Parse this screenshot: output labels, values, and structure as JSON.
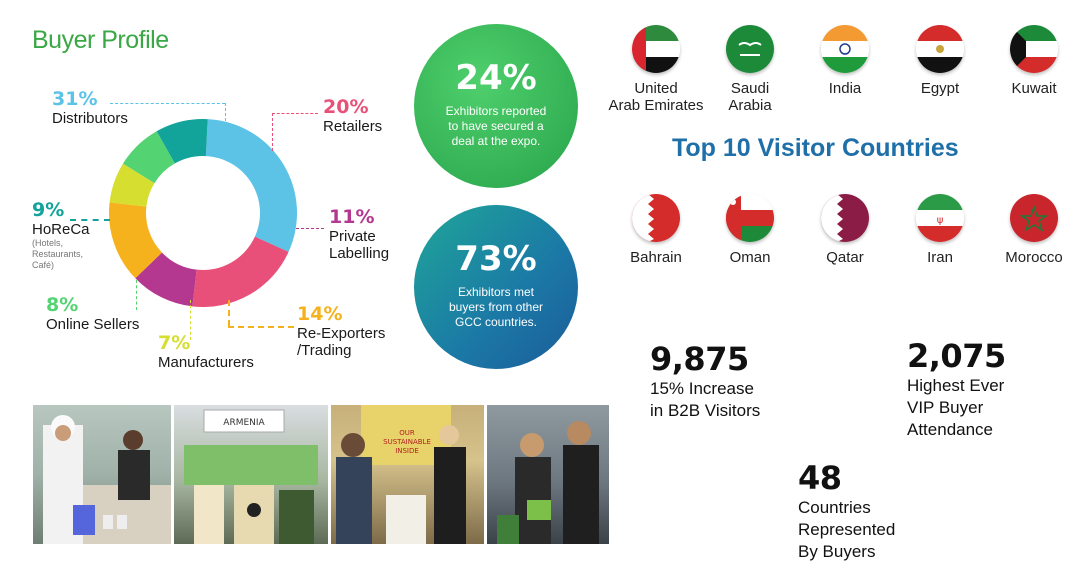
{
  "buyer_profile": {
    "title": "Buyer Profile"
  },
  "chart_data": {
    "type": "pie",
    "title": "Buyer Profile",
    "donut": true,
    "slices": [
      {
        "label": "Distributors",
        "value": 31,
        "pct_label": "31%",
        "color": "#5cc2e6"
      },
      {
        "label": "Retailers",
        "value": 20,
        "pct_label": "20%",
        "color": "#e8507a"
      },
      {
        "label": "Private Labelling",
        "value": 11,
        "pct_label": "11%",
        "color": "#b4388f"
      },
      {
        "label": "Re-Exporters /Trading",
        "value": 14,
        "pct_label": "14%",
        "color": "#f5b21c"
      },
      {
        "label": "Manufacturers",
        "value": 7,
        "pct_label": "7%",
        "color": "#d6de30"
      },
      {
        "label": "Online Sellers",
        "value": 8,
        "pct_label": "8%",
        "color": "#54d373"
      },
      {
        "label": "HoReCa",
        "value": 9,
        "pct_label": "9%",
        "color": "#12a39a",
        "note": "(Hotels, Restaurants, Café)"
      }
    ]
  },
  "labels": {
    "distributors": {
      "pct": "31%",
      "name": "Distributors"
    },
    "retailers": {
      "pct": "20%",
      "name": "Retailers"
    },
    "private": {
      "pct": "11%",
      "name1": "Private",
      "name2": "Labelling"
    },
    "reexport": {
      "pct": "14%",
      "name1": "Re-Exporters",
      "name2": "/Trading"
    },
    "manufacturers": {
      "pct": "7%",
      "name": "Manufacturers"
    },
    "online": {
      "pct": "8%",
      "name": "Online Sellers"
    },
    "horeca": {
      "pct": "9%",
      "name": "HoReCa",
      "note1": "(Hotels,",
      "note2": "Restaurants,",
      "note3": "Café)"
    }
  },
  "highlights": {
    "deal": {
      "value": "24%",
      "line1": "Exhibitors reported",
      "line2": "to have secured a",
      "line3": "deal at the expo."
    },
    "gcc": {
      "value": "73%",
      "line1": "Exhibitors met",
      "line2": "buyers from other",
      "line3": "GCC countries."
    }
  },
  "countries": {
    "heading": "Top 10 Visitor Countries",
    "row1": [
      {
        "name1": "United",
        "name2": "Arab Emirates",
        "flag": "uae-flag-icon"
      },
      {
        "name1": "Saudi",
        "name2": "Arabia",
        "flag": "saudi-flag-icon"
      },
      {
        "name1": "India",
        "name2": "",
        "flag": "india-flag-icon"
      },
      {
        "name1": "Egypt",
        "name2": "",
        "flag": "egypt-flag-icon"
      },
      {
        "name1": "Kuwait",
        "name2": "",
        "flag": "kuwait-flag-icon"
      }
    ],
    "row2": [
      {
        "name1": "Bahrain",
        "flag": "bahrain-flag-icon"
      },
      {
        "name1": "Oman",
        "flag": "oman-flag-icon"
      },
      {
        "name1": "Qatar",
        "flag": "qatar-flag-icon"
      },
      {
        "name1": "Iran",
        "flag": "iran-flag-icon"
      },
      {
        "name1": "Morocco",
        "flag": "morocco-flag-icon"
      }
    ]
  },
  "stats": {
    "b2b": {
      "value": "9,875",
      "line1": "15% Increase",
      "line2": "in B2B Visitors"
    },
    "vip": {
      "value": "2,075",
      "line1": "Highest Ever",
      "line2": "VIP Buyer",
      "line3": "Attendance"
    },
    "countries": {
      "value": "48",
      "line1": "Countries",
      "line2": "Represented",
      "line3": "By Buyers"
    }
  },
  "photos": {
    "banner_text": "ARMENIA",
    "sign_text1": "OUR",
    "sign_text2": "SUSTAINABLE",
    "sign_text3": "INSIDE"
  }
}
